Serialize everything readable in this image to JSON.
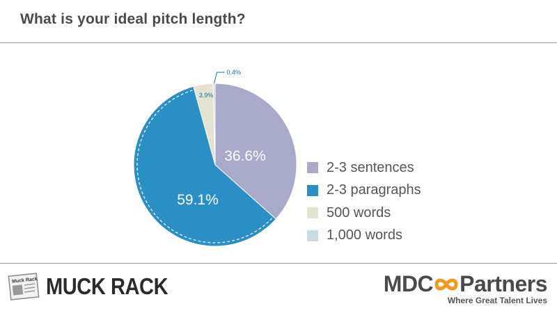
{
  "title": "What is your ideal pitch length?",
  "chart_data": {
    "type": "pie",
    "title": "What is your ideal pitch length?",
    "categories": [
      "2-3 sentences",
      "2-3 paragraphs",
      "500 words",
      "1,000 words"
    ],
    "values": [
      36.6,
      59.1,
      3.9,
      0.4
    ],
    "labels": [
      "36.6%",
      "59.1%",
      "3.9%",
      "0.4%"
    ],
    "colors": [
      "#a9a9c9",
      "#2a8fc4",
      "#e4e3d1",
      "#cbdbe3"
    ],
    "legend_position": "right"
  },
  "logos": {
    "left": "MUCK RACK",
    "left_paper_text": "Muck Rack",
    "right_prefix": "MDC",
    "right_suffix": "Partners",
    "right_tagline": "Where Great Talent Lives"
  }
}
